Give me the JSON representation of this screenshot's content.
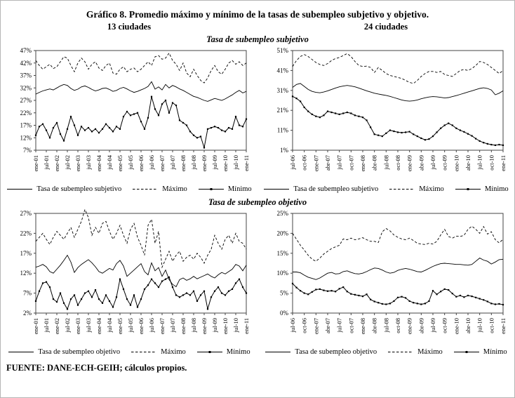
{
  "page": {
    "title": "Gráfico 8. Promedio máximo y mínimo de la tasas de subempleo subjetivo y objetivo.",
    "col_headers": [
      "13 ciudades",
      "24 ciudades"
    ],
    "row_subtitles": [
      "Tasa de subempleo subjetivo",
      "Tasa de subempleo objetivo"
    ],
    "footer": "FUENTE: DANE-ECH-GEIH; cálculos propios."
  },
  "colors": {
    "line": "#000000",
    "axis": "#444444",
    "page_border": "#b5b5b5",
    "background": "#ffffff"
  },
  "chart_data": [
    {
      "type": "line",
      "title": "Tasa de subempleo subjetivo - 13 ciudades",
      "ylim": [
        7,
        47
      ],
      "yticks": [
        7,
        12,
        17,
        22,
        27,
        32,
        37,
        42,
        47
      ],
      "ytick_suffix": "%",
      "grid": false,
      "legend_position": "bottom",
      "tick_every": 3,
      "x_labels": [
        "ene-01",
        "jul-01",
        "ene-02",
        "jul-02",
        "ene-03",
        "jul-03",
        "ene-04",
        "jul-04",
        "ene-05",
        "jul-05",
        "ene-06",
        "jul-06",
        "ene-07",
        "jul-07",
        "ene-08",
        "jul-08",
        "ene-09",
        "jul-09",
        "ene-10",
        "jul-10",
        "ene-11"
      ],
      "series": [
        {
          "name": "Tasa de subempleo subjetivo",
          "style": "solid",
          "values": [
            29.5,
            30.2,
            30.8,
            31.2,
            31.6,
            31.2,
            32.0,
            32.8,
            33.4,
            33.0,
            31.8,
            31.0,
            31.5,
            32.4,
            32.8,
            32.2,
            31.4,
            30.8,
            31.2,
            31.8,
            32.0,
            31.4,
            30.6,
            31.0,
            31.8,
            32.2,
            31.6,
            30.8,
            30.2,
            30.6,
            31.2,
            31.8,
            32.6,
            34.5,
            31.5,
            32.4,
            31.2,
            33.4,
            32.0,
            33.0,
            32.4,
            31.6,
            31.0,
            30.2,
            29.4,
            28.6,
            28.2,
            27.6,
            27.0,
            26.6,
            27.2,
            27.8,
            27.4,
            27.0,
            27.6,
            28.4,
            29.2,
            30.2,
            31.0,
            30.0,
            30.6
          ]
        },
        {
          "name": "Máximo",
          "style": "dashed",
          "values": [
            43.0,
            41.0,
            39.5,
            40.5,
            41.5,
            39.8,
            40.5,
            42.5,
            44.5,
            44.0,
            41.0,
            38.5,
            42.0,
            44.0,
            42.5,
            39.5,
            41.5,
            42.5,
            40.0,
            39.0,
            41.0,
            42.0,
            38.0,
            37.5,
            39.5,
            40.5,
            38.5,
            39.5,
            40.0,
            38.5,
            39.5,
            41.0,
            42.5,
            41.0,
            44.5,
            45.0,
            43.5,
            44.0,
            46.0,
            43.0,
            41.5,
            39.0,
            42.0,
            38.0,
            36.5,
            39.5,
            37.0,
            35.0,
            34.0,
            36.0,
            39.0,
            41.0,
            38.5,
            37.5,
            39.5,
            42.0,
            43.0,
            41.5,
            42.5,
            41.0,
            42.0
          ]
        },
        {
          "name": "Mínimo",
          "style": "markers",
          "values": [
            13.0,
            16.5,
            17.5,
            15.0,
            12.0,
            16.0,
            18.0,
            13.5,
            10.8,
            15.5,
            20.5,
            17.0,
            13.0,
            16.5,
            15.0,
            16.0,
            14.5,
            15.5,
            14.0,
            15.5,
            17.5,
            16.0,
            14.5,
            16.5,
            15.5,
            20.5,
            22.5,
            21.0,
            21.5,
            22.0,
            18.5,
            15.5,
            20.0,
            28.5,
            23.5,
            21.0,
            25.5,
            27.0,
            22.0,
            26.0,
            25.0,
            19.0,
            18.0,
            17.0,
            14.5,
            13.0,
            12.0,
            12.5,
            8.0,
            15.5,
            16.0,
            16.5,
            16.0,
            15.0,
            14.5,
            16.0,
            15.5,
            20.5,
            17.0,
            16.5,
            19.5
          ]
        }
      ]
    },
    {
      "type": "line",
      "title": "Tasa de subempleo subjetivo - 24 ciudades",
      "ylim": [
        1,
        51
      ],
      "yticks": [
        1,
        11,
        21,
        31,
        41,
        51
      ],
      "ytick_suffix": "%",
      "grid": false,
      "legend_position": "bottom",
      "tick_every": 3,
      "x_labels": [
        "jul-06",
        "oct-06",
        "ene-07",
        "abr-07",
        "jul-07",
        "oct-07",
        "ene-08",
        "abr-08",
        "jul-08",
        "oct-08",
        "ene-09",
        "abr-09",
        "jul-09",
        "oct-09",
        "ene-10",
        "abr-10",
        "jul-10",
        "oct-10",
        "ene-11"
      ],
      "series": [
        {
          "name": "Tasa de subempleo subjetivo",
          "style": "solid",
          "values": [
            32.5,
            34.0,
            34.5,
            33.0,
            31.5,
            30.5,
            30.0,
            29.8,
            30.2,
            30.8,
            31.5,
            32.2,
            32.8,
            33.2,
            33.5,
            33.2,
            32.8,
            32.2,
            31.5,
            30.8,
            30.2,
            29.6,
            29.2,
            28.8,
            28.5,
            28.0,
            27.4,
            26.8,
            26.2,
            25.8,
            25.6,
            25.8,
            26.2,
            26.8,
            27.3,
            27.7,
            27.9,
            27.8,
            27.5,
            27.2,
            27.4,
            27.9,
            28.4,
            29.0,
            29.6,
            30.2,
            30.8,
            31.4,
            32.0,
            32.3,
            32.0,
            31.2,
            28.8,
            29.6,
            30.8
          ]
        },
        {
          "name": "Máximo",
          "style": "dashed",
          "values": [
            43.0,
            46.0,
            48.0,
            49.0,
            48.0,
            46.5,
            45.0,
            44.0,
            43.5,
            44.5,
            46.0,
            47.0,
            47.5,
            48.5,
            49.5,
            48.0,
            45.5,
            43.5,
            43.0,
            43.2,
            42.5,
            40.0,
            42.5,
            41.0,
            39.5,
            38.5,
            38.0,
            37.5,
            37.0,
            36.0,
            35.0,
            34.5,
            36.0,
            38.0,
            39.5,
            40.5,
            40.5,
            40.0,
            40.5,
            39.0,
            38.5,
            38.0,
            39.5,
            41.0,
            41.5,
            41.0,
            42.0,
            43.5,
            45.5,
            45.0,
            44.0,
            42.5,
            41.0,
            39.5,
            41.0
          ]
        },
        {
          "name": "Mínimo",
          "style": "markers",
          "values": [
            28.0,
            27.0,
            25.5,
            22.5,
            20.5,
            19.0,
            18.0,
            17.5,
            18.5,
            20.5,
            20.0,
            19.5,
            19.0,
            19.5,
            20.0,
            19.5,
            18.5,
            18.0,
            17.5,
            16.0,
            12.5,
            9.0,
            8.5,
            8.0,
            9.5,
            11.0,
            10.5,
            10.0,
            9.8,
            10.0,
            10.3,
            9.0,
            8.0,
            7.0,
            6.2,
            6.6,
            8.0,
            10.0,
            12.0,
            13.5,
            14.5,
            13.5,
            12.0,
            11.0,
            10.2,
            9.2,
            8.2,
            6.8,
            5.6,
            4.8,
            4.2,
            3.8,
            3.5,
            3.8,
            3.5
          ]
        }
      ]
    },
    {
      "type": "line",
      "title": "Tasa de subempleo objetivo - 13 ciudades",
      "ylim": [
        2,
        27
      ],
      "yticks": [
        2,
        7,
        12,
        17,
        22,
        27
      ],
      "ytick_suffix": "%",
      "grid": false,
      "legend_position": "bottom",
      "tick_every": 3,
      "x_labels": [
        "ene-01",
        "jul-01",
        "ene-02",
        "jul-02",
        "ene-03",
        "jul-03",
        "ene-04",
        "jul-04",
        "ene-05",
        "jul-05",
        "ene-06",
        "jul-06",
        "ene-07",
        "jul-07",
        "ene-08",
        "jul-08",
        "ene-09",
        "jul-09",
        "ene-10",
        "jul-10",
        "ene-11"
      ],
      "series": [
        {
          "name": "Tasa de subempleo objetivo",
          "style": "solid",
          "values": [
            13.5,
            13.8,
            14.2,
            13.6,
            12.4,
            12.0,
            13.0,
            14.0,
            15.2,
            16.5,
            14.8,
            12.2,
            13.4,
            14.2,
            14.8,
            15.4,
            14.6,
            13.6,
            12.4,
            12.0,
            12.6,
            13.2,
            12.8,
            14.4,
            15.2,
            13.8,
            11.2,
            12.0,
            12.8,
            13.6,
            14.4,
            12.4,
            11.6,
            14.6,
            12.6,
            13.4,
            11.2,
            12.8,
            10.4,
            9.2,
            8.6,
            10.4,
            10.8,
            10.2,
            10.6,
            11.2,
            10.6,
            11.0,
            11.4,
            11.8,
            11.2,
            10.8,
            11.6,
            12.2,
            11.8,
            12.4,
            13.0,
            14.2,
            13.8,
            12.6,
            14.0
          ]
        },
        {
          "name": "Máximo",
          "style": "dashed",
          "values": [
            20.0,
            21.0,
            22.0,
            20.5,
            19.2,
            21.0,
            22.5,
            21.5,
            20.5,
            22.0,
            23.5,
            21.0,
            23.0,
            25.0,
            28.0,
            26.0,
            21.5,
            23.5,
            22.0,
            24.5,
            25.0,
            22.5,
            20.5,
            22.0,
            24.0,
            21.5,
            19.5,
            23.0,
            24.5,
            21.0,
            19.0,
            16.5,
            24.0,
            25.5,
            19.5,
            22.5,
            13.5,
            15.5,
            17.5,
            15.0,
            16.5,
            17.5,
            15.0,
            16.0,
            16.5,
            15.5,
            17.0,
            16.0,
            14.5,
            16.5,
            18.0,
            21.5,
            19.5,
            18.0,
            20.5,
            21.5,
            19.5,
            22.0,
            20.0,
            19.5,
            18.0
          ]
        },
        {
          "name": "Mínimo",
          "style": "markers",
          "values": [
            5.0,
            7.5,
            9.5,
            9.8,
            8.5,
            5.5,
            4.8,
            7.0,
            4.5,
            3.0,
            5.5,
            6.5,
            4.0,
            5.5,
            7.0,
            7.5,
            6.0,
            7.8,
            5.5,
            4.5,
            6.5,
            5.0,
            3.5,
            6.0,
            10.5,
            8.0,
            5.5,
            4.0,
            6.5,
            3.5,
            5.5,
            8.0,
            9.0,
            10.5,
            9.5,
            8.5,
            10.0,
            10.5,
            11.0,
            8.5,
            6.5,
            6.0,
            6.5,
            7.0,
            6.5,
            7.5,
            5.0,
            6.5,
            7.5,
            3.0,
            6.0,
            7.5,
            8.5,
            7.0,
            6.5,
            7.5,
            8.0,
            9.5,
            10.5,
            8.5,
            7.0
          ]
        }
      ]
    },
    {
      "type": "line",
      "title": "Tasa de subempleo objetivo - 24 ciudades",
      "ylim": [
        0,
        25
      ],
      "yticks": [
        0,
        5,
        10,
        15,
        20,
        25
      ],
      "ytick_suffix": "%",
      "grid": false,
      "legend_position": "bottom",
      "tick_every": 3,
      "x_labels": [
        "jul-06",
        "oct-06",
        "ene-07",
        "abr-07",
        "jul-07",
        "oct-07",
        "ene-08",
        "abr-08",
        "jul-08",
        "oct-08",
        "ene-09",
        "abr-09",
        "jul-09",
        "oct-09",
        "ene-10",
        "abr-10",
        "jul-10",
        "oct-10",
        "ene-11"
      ],
      "series": [
        {
          "name": "Tasa de subempleo objetivo",
          "style": "solid",
          "values": [
            10.3,
            10.3,
            10.1,
            9.5,
            9.0,
            8.7,
            8.4,
            8.8,
            9.4,
            10.0,
            10.2,
            9.8,
            9.9,
            10.4,
            10.6,
            10.2,
            9.9,
            9.8,
            10.0,
            10.4,
            10.9,
            11.3,
            11.2,
            10.8,
            10.3,
            10.0,
            10.2,
            10.7,
            11.0,
            11.2,
            11.0,
            10.7,
            10.4,
            10.3,
            10.7,
            11.2,
            11.7,
            12.1,
            12.4,
            12.5,
            12.4,
            12.3,
            12.2,
            12.2,
            12.1,
            12.0,
            12.2,
            13.0,
            13.8,
            13.3,
            13.0,
            12.3,
            12.8,
            13.4,
            13.5
          ]
        },
        {
          "name": "Máximo",
          "style": "dashed",
          "values": [
            20.0,
            18.5,
            17.0,
            15.8,
            14.5,
            13.5,
            13.0,
            13.8,
            14.8,
            15.5,
            16.2,
            16.6,
            17.0,
            18.6,
            18.4,
            18.8,
            18.4,
            18.6,
            18.9,
            18.4,
            18.0,
            18.0,
            17.7,
            20.4,
            21.2,
            20.6,
            19.6,
            19.0,
            18.6,
            18.4,
            18.8,
            18.2,
            17.5,
            17.3,
            17.2,
            17.5,
            17.3,
            18.0,
            19.6,
            21.0,
            19.2,
            18.8,
            19.3,
            19.2,
            19.5,
            21.0,
            21.8,
            21.0,
            20.0,
            21.7,
            19.8,
            20.4,
            18.4,
            17.6,
            18.5
          ]
        },
        {
          "name": "Mínimo",
          "style": "markers",
          "values": [
            7.4,
            6.4,
            5.6,
            5.0,
            4.7,
            5.3,
            5.9,
            6.0,
            5.7,
            5.5,
            5.6,
            5.4,
            6.1,
            6.5,
            5.4,
            4.8,
            4.6,
            4.4,
            4.2,
            4.7,
            3.4,
            2.9,
            2.6,
            2.3,
            2.2,
            2.4,
            3.0,
            3.9,
            4.1,
            3.8,
            3.0,
            2.6,
            2.4,
            2.2,
            2.4,
            3.0,
            5.6,
            4.7,
            5.4,
            6.0,
            5.8,
            4.9,
            4.1,
            4.4,
            4.0,
            4.4,
            4.2,
            3.9,
            3.6,
            3.3,
            2.9,
            2.4,
            2.2,
            2.3,
            2.1
          ]
        }
      ]
    }
  ]
}
